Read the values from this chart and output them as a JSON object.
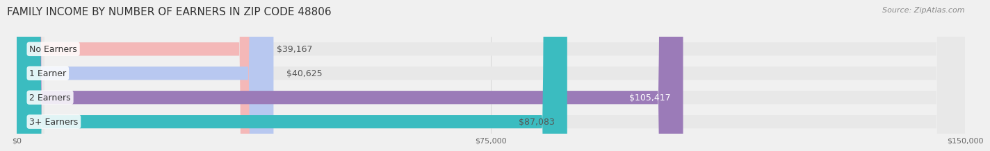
{
  "title": "FAMILY INCOME BY NUMBER OF EARNERS IN ZIP CODE 48806",
  "source": "Source: ZipAtlas.com",
  "categories": [
    "No Earners",
    "1 Earner",
    "2 Earners",
    "3+ Earners"
  ],
  "values": [
    39167,
    40625,
    105417,
    87083
  ],
  "bar_colors": [
    "#f4b8b8",
    "#b8c8f0",
    "#9b7bb8",
    "#3bbcc0"
  ],
  "label_colors": [
    "#555555",
    "#555555",
    "#ffffff",
    "#555555"
  ],
  "value_labels": [
    "$39,167",
    "$40,625",
    "$105,417",
    "$87,083"
  ],
  "xmax": 150000,
  "xticks": [
    0,
    75000,
    150000
  ],
  "xtick_labels": [
    "$0",
    "$75,000",
    "$150,000"
  ],
  "background_color": "#f0f0f0",
  "bar_background_color": "#e8e8e8",
  "title_fontsize": 11,
  "source_fontsize": 8,
  "label_fontsize": 9,
  "value_fontsize": 9
}
